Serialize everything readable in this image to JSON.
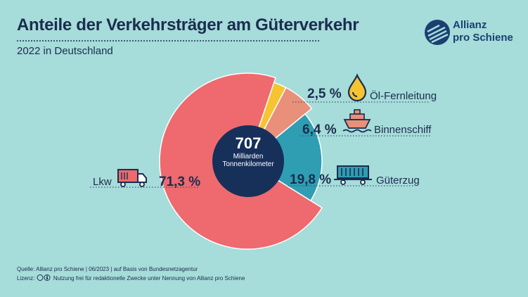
{
  "header": {
    "title": "Anteile der Verkehrsträger am Güterverkehr",
    "subtitle": "2022 in Deutschland"
  },
  "logo": {
    "line1": "Allianz",
    "line2": "pro Schiene"
  },
  "center": {
    "value": "707",
    "unit_line1": "Milliarden",
    "unit_line2": "Tonnenkilometer"
  },
  "chart_data": {
    "type": "pie",
    "center_total": 707,
    "slices": [
      {
        "name": "Lkw",
        "value": 71.3,
        "label": "71,3 %",
        "color": "#ee6a6e",
        "icon": "truck-icon"
      },
      {
        "name": "Öl-Fernleitung",
        "value": 2.5,
        "label": "2,5 %",
        "color": "#f6c430",
        "icon": "oil-drop-icon"
      },
      {
        "name": "Binnenschiff",
        "value": 6.4,
        "label": "6,4 %",
        "color": "#e89079",
        "icon": "ship-icon"
      },
      {
        "name": "Güterzug",
        "value": 19.8,
        "label": "19,8 %",
        "color": "#2f9eb2",
        "icon": "freight-train-icon"
      }
    ]
  },
  "footer": {
    "source": "Quelle: Allianz pro Schiene | 06/2023 | auf Basis von Bundesnetzagentur",
    "license_prefix": "Lizenz:",
    "license_text": "Nutzung frei für redaktionelle Zwecke unter Nennung von Allianz pro Schiene"
  }
}
